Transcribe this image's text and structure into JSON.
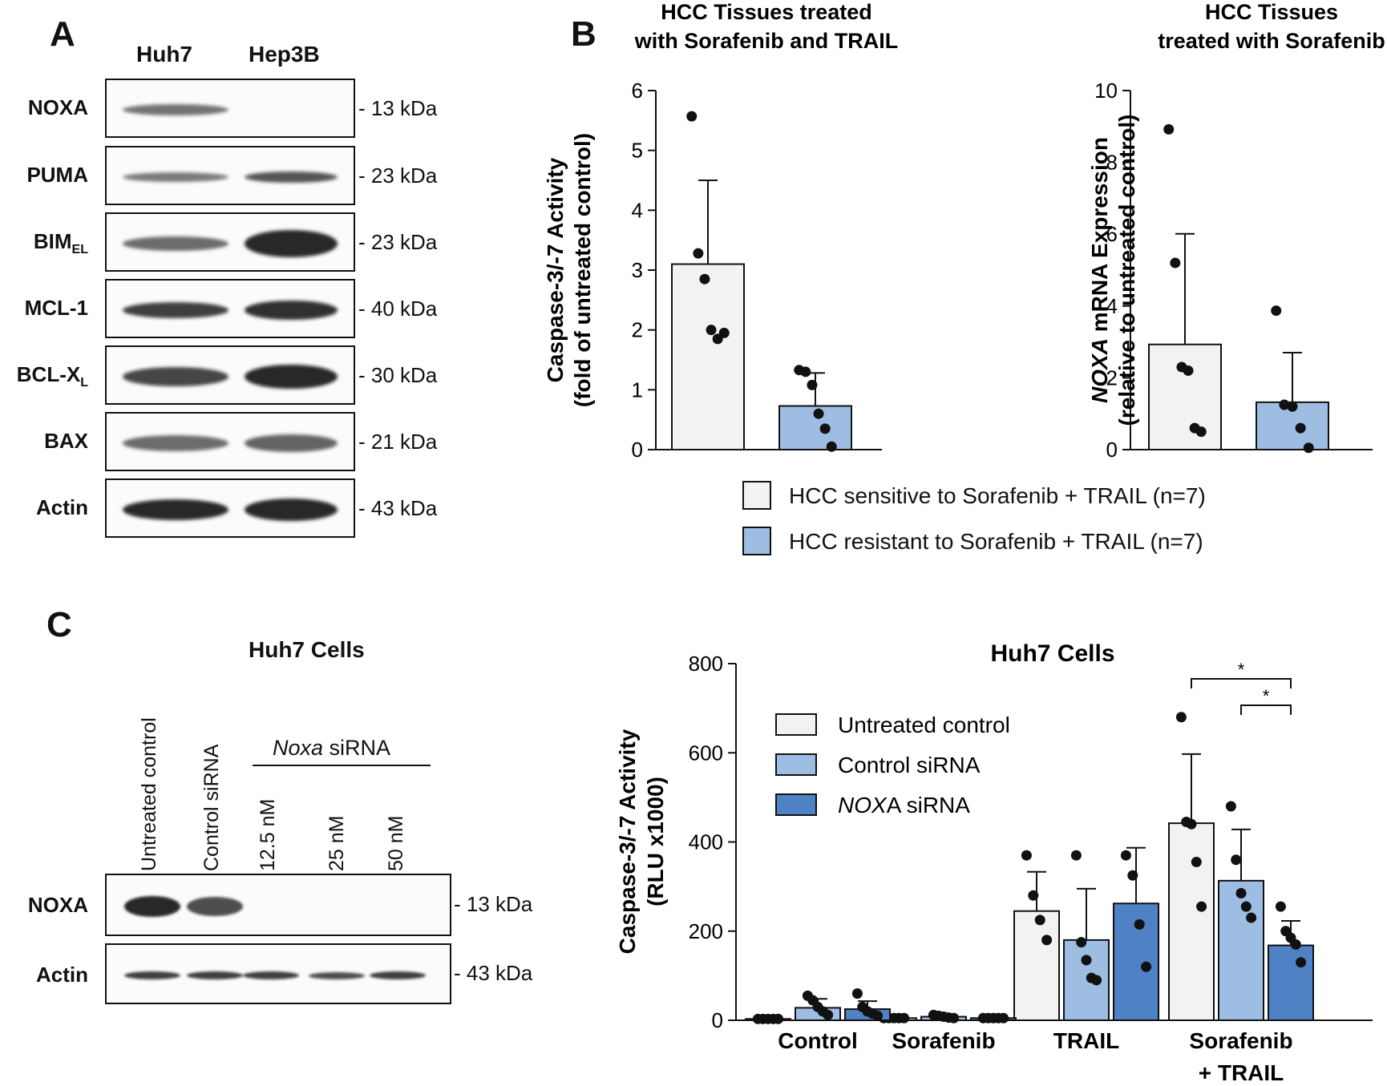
{
  "panels": {
    "a": "A",
    "b": "B",
    "c": "C"
  },
  "panel_a": {
    "headers": [
      "Huh7",
      "Hep3B"
    ],
    "rows": [
      {
        "label": "NOXA",
        "sub": "",
        "kda": "- 13 kDa"
      },
      {
        "label": "PUMA",
        "sub": "",
        "kda": "- 23 kDa"
      },
      {
        "label": "BIM",
        "sub": "EL",
        "kda": "- 23 kDa"
      },
      {
        "label": "MCL-1",
        "sub": "",
        "kda": "- 40 kDa"
      },
      {
        "label": "BCL-X",
        "sub": "L",
        "kda": "- 30 kDa"
      },
      {
        "label": "BAX",
        "sub": "",
        "kda": "- 21 kDa"
      },
      {
        "label": "Actin",
        "sub": "",
        "kda": "- 43 kDa"
      }
    ]
  },
  "panel_c_blot": {
    "title": "Huh7 Cells",
    "lanes": [
      "Untreated control",
      "Control siRNA",
      "12.5 nM",
      "25 nM",
      "50 nM"
    ],
    "group_label_italic": "Noxa",
    "group_label_rest": " siRNA",
    "rows": [
      {
        "label": "NOXA",
        "kda": "- 13 kDa"
      },
      {
        "label": "Actin",
        "kda": "- 43 kDa"
      }
    ]
  },
  "legend_b": [
    {
      "label": "HCC sensitive to Sorafenib + TRAIL (n=7)",
      "color": "#f2f2f2"
    },
    {
      "label": "HCC resistant to Sorafenib + TRAIL (n=7)",
      "color": "#9dbde3"
    }
  ],
  "chart_data": [
    {
      "type": "bar",
      "title": [
        "HCC Tissues treated",
        "with Sorafenib and TRAIL"
      ],
      "ylabel": [
        "Caspase-3/-7 Activity",
        "(fold of untreated control)"
      ],
      "ylim": [
        0,
        6
      ],
      "yticks": [
        0,
        1,
        2,
        3,
        4,
        5,
        6
      ],
      "categories": [
        "HCC sensitive to Sorafenib + TRAIL (n=7)",
        "HCC resistant to Sorafenib + TRAIL (n=7)"
      ],
      "values": [
        3.1,
        0.73
      ],
      "errors": [
        1.4,
        0.55
      ],
      "colors": [
        "#f2f2f2",
        "#9dbde3"
      ],
      "points": [
        [
          5.57,
          3.28,
          2.85,
          2.0,
          1.85,
          1.95
        ],
        [
          1.33,
          1.3,
          1.08,
          0.6,
          0.35,
          0.05
        ]
      ]
    },
    {
      "type": "bar",
      "title": [
        "HCC Tissues",
        "treated with Sorafenib"
      ],
      "ylabel_italic": "NOXA",
      "ylabel": [
        " mRNA Expression",
        "(relative to untreated control)"
      ],
      "ylim": [
        0,
        10
      ],
      "yticks": [
        0,
        2,
        4,
        6,
        8,
        10
      ],
      "categories": [
        "HCC sensitive to Sorafenib + TRAIL (n=7)",
        "HCC resistant to Sorafenib + TRAIL (n=7)"
      ],
      "values": [
        2.93,
        1.32
      ],
      "errors": [
        3.08,
        1.38
      ],
      "colors": [
        "#f2f2f2",
        "#9dbde3"
      ],
      "points": [
        [
          8.92,
          5.2,
          2.3,
          2.2,
          0.6,
          0.5
        ],
        [
          3.87,
          1.25,
          1.2,
          0.6,
          0.05
        ]
      ]
    },
    {
      "type": "bar",
      "title": "Huh7 Cells",
      "ylabel": [
        "Caspase-3/-7 Activity",
        "(RLU x1000)"
      ],
      "ylim": [
        0,
        800
      ],
      "yticks": [
        0,
        200,
        400,
        600,
        800
      ],
      "categories": [
        "Control",
        "Sorafenib",
        "TRAIL",
        [
          "Sorafenib",
          "+ TRAIL"
        ]
      ],
      "series": [
        {
          "name": "Untreated control",
          "label_italic": "",
          "label_rest": "Untreated control",
          "color": "#f2f2f2",
          "values": [
            3,
            5,
            245,
            442
          ],
          "errors": [
            0,
            0,
            88,
            155
          ],
          "points": [
            [
              3,
              3,
              3,
              3,
              3
            ],
            [
              5,
              5,
              5,
              5,
              5
            ],
            [
              370,
              280,
              225,
              180
            ],
            [
              680,
              445,
              440,
              355,
              255
            ]
          ]
        },
        {
          "name": "Control siRNA",
          "label_italic": "",
          "label_rest": "Control siRNA",
          "color": "#9dbde3",
          "values": [
            28,
            8,
            180,
            313
          ],
          "errors": [
            20,
            3,
            115,
            115
          ],
          "points": [
            [
              55,
              45,
              30,
              20,
              12
            ],
            [
              12,
              10,
              8,
              6,
              5
            ],
            [
              370,
              175,
              135,
              95,
              90
            ],
            [
              480,
              360,
              285,
              255,
              230
            ]
          ]
        },
        {
          "name": "NOXA siRNA",
          "label_italic": "NOX",
          "label_rest": "A siRNA",
          "color": "#4f82c4",
          "values": [
            25,
            5,
            262,
            168
          ],
          "errors": [
            18,
            2,
            125,
            55
          ],
          "points": [
            [
              60,
              30,
              20,
              15,
              10
            ],
            [
              5,
              5,
              5,
              5,
              5
            ],
            [
              370,
              325,
              215,
              120
            ],
            [
              255,
              200,
              185,
              170,
              130
            ]
          ]
        }
      ],
      "significance": [
        {
          "label": "*",
          "from": "Untreated control",
          "to": "NOXA siRNA"
        },
        {
          "label": "*",
          "from": "Control siRNA",
          "to": "NOXA siRNA"
        }
      ],
      "legend_position": "upper-left"
    }
  ]
}
